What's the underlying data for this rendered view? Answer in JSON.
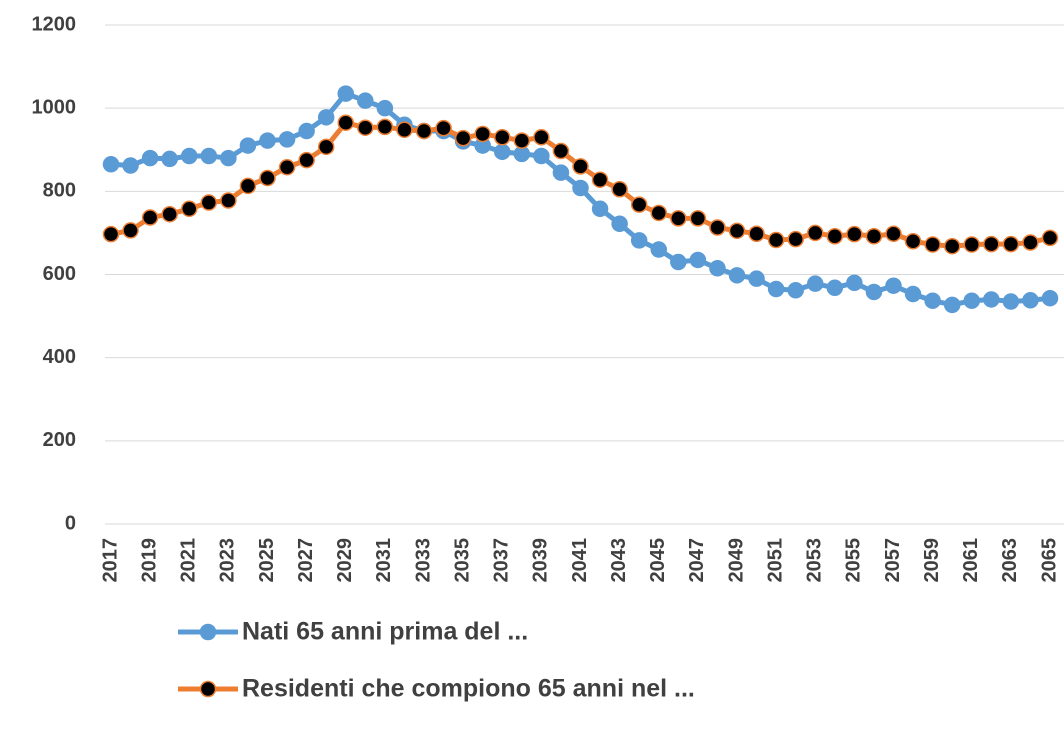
{
  "chart_data": {
    "type": "line",
    "categories": [
      "2017",
      null,
      "2019",
      null,
      "2021",
      null,
      "2023",
      null,
      "2025",
      null,
      "2027",
      null,
      "2029",
      null,
      "2031",
      null,
      "2033",
      null,
      "2035",
      null,
      "2037",
      null,
      "2039",
      null,
      "2041",
      null,
      "2043",
      null,
      "2045",
      null,
      "2047",
      null,
      "2049",
      null,
      "2051",
      null,
      "2053",
      null,
      "2055",
      null,
      "2057",
      null,
      "2059",
      null,
      "2061",
      null,
      "2063",
      null,
      "2065"
    ],
    "series": [
      {
        "name": "Nati 65 anni prima del ...",
        "color": "#5b9bd5",
        "marker_color": "#5b9bd5",
        "values": [
          865,
          862,
          880,
          878,
          885,
          885,
          880,
          910,
          922,
          925,
          945,
          978,
          1035,
          1018,
          1000,
          960,
          945,
          945,
          920,
          910,
          895,
          890,
          885,
          845,
          808,
          758,
          722,
          682,
          660,
          630,
          635,
          615,
          598,
          590,
          565,
          562,
          578,
          568,
          580,
          558,
          573,
          553,
          537,
          527,
          537,
          540,
          535,
          538,
          543
        ]
      },
      {
        "name": "Residenti che compiono 65 anni nel ...",
        "color": "#ed7d31",
        "marker_color": "#000000",
        "values": [
          697,
          706,
          737,
          745,
          758,
          773,
          778,
          813,
          832,
          858,
          875,
          907,
          965,
          953,
          955,
          948,
          945,
          952,
          928,
          938,
          930,
          922,
          930,
          897,
          860,
          828,
          805,
          768,
          748,
          735,
          735,
          713,
          705,
          698,
          683,
          685,
          700,
          692,
          697,
          692,
          698,
          680,
          672,
          668,
          672,
          673,
          673,
          677,
          688
        ]
      }
    ],
    "ylim": [
      0,
      1200
    ],
    "yticks": [
      0,
      200,
      400,
      600,
      800,
      1000,
      1200
    ],
    "grid": true,
    "legend": "bottom"
  }
}
